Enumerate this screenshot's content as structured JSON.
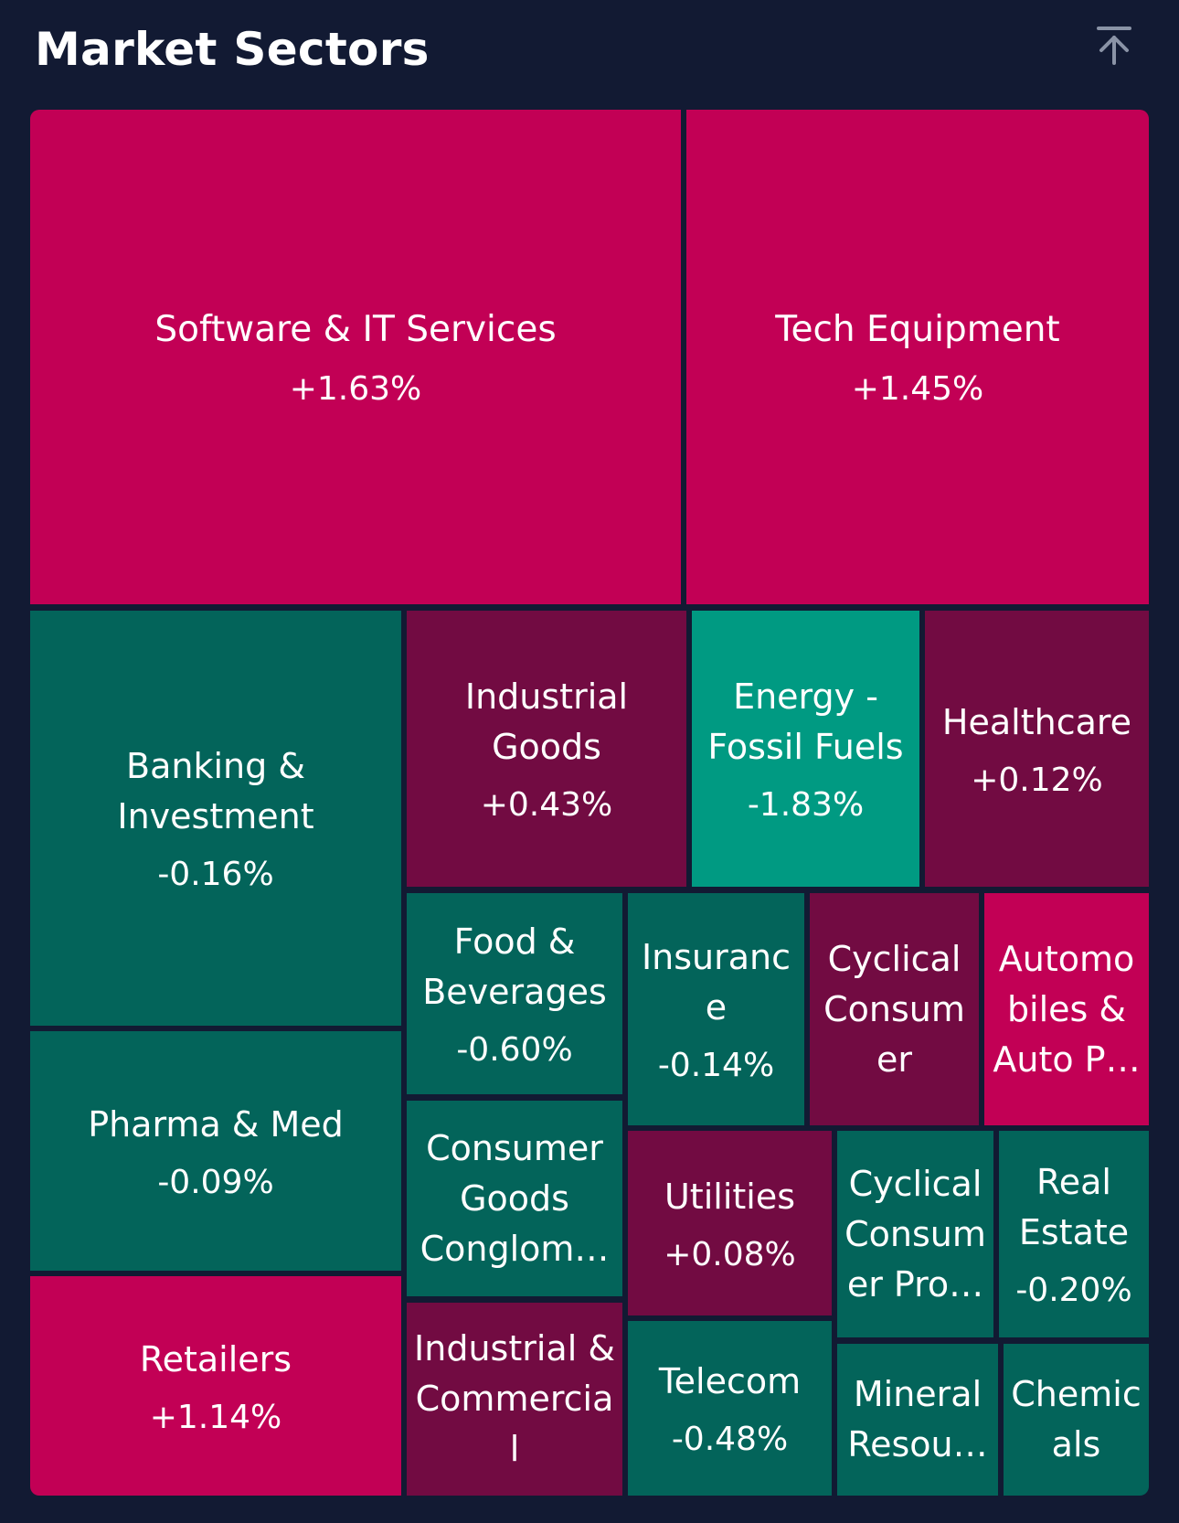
{
  "header": {
    "title": "Market Sectors",
    "collapse_icon": "arrow-up-to-bar-icon"
  },
  "colors": {
    "background": "#121a33",
    "strong_up": "#c20055",
    "mild_up": "#720b42",
    "mild_down": "#03645a",
    "strong_down": "#009a82"
  },
  "sectors": [
    {
      "id": "software-it-services",
      "name": "Software & IT Services",
      "change": "+1.63%",
      "color": "#c20055"
    },
    {
      "id": "tech-equipment",
      "name": "Tech Equipment",
      "change": "+1.45%",
      "color": "#c20055"
    },
    {
      "id": "banking-investment",
      "name": "Banking & Investment",
      "change": "-0.16%",
      "color": "#03645a"
    },
    {
      "id": "industrial-goods",
      "name": "Industrial Goods",
      "change": "+0.43%",
      "color": "#720b42"
    },
    {
      "id": "energy-fossil-fuels",
      "name": "Energy - Fossil Fuels",
      "change": "-1.83%",
      "color": "#009a82"
    },
    {
      "id": "healthcare",
      "name": "Healthcare",
      "change": "+0.12%",
      "color": "#720b42"
    },
    {
      "id": "food-beverages",
      "name": "Food & Beverages",
      "change": "-0.60%",
      "color": "#03645a"
    },
    {
      "id": "insurance",
      "name": "Insurance",
      "change": "-0.14%",
      "color": "#03645a"
    },
    {
      "id": "cyclical-consumer",
      "name": "Cyclical Consumer",
      "change": "",
      "color": "#720b42"
    },
    {
      "id": "automobiles-auto-parts",
      "name": "Automobiles & Auto P…",
      "change": "",
      "color": "#c20055"
    },
    {
      "id": "pharma-med",
      "name": "Pharma & Med",
      "change": "-0.09%",
      "color": "#03645a"
    },
    {
      "id": "consumer-goods-conglomerates",
      "name": "Consumer Goods Conglom…",
      "change": "",
      "color": "#03645a"
    },
    {
      "id": "utilities",
      "name": "Utilities",
      "change": "+0.08%",
      "color": "#720b42"
    },
    {
      "id": "cyclical-consumer-products",
      "name": "Cyclical Consumer Pro…",
      "change": "",
      "color": "#03645a"
    },
    {
      "id": "real-estate",
      "name": "Real Estate",
      "change": "-0.20%",
      "color": "#03645a"
    },
    {
      "id": "retailers",
      "name": "Retailers",
      "change": "+1.14%",
      "color": "#c20055"
    },
    {
      "id": "industrial-commercial",
      "name": "Industrial & Commercial",
      "change": "",
      "color": "#720b42"
    },
    {
      "id": "telecom",
      "name": "Telecom",
      "change": "-0.48%",
      "color": "#03645a"
    },
    {
      "id": "mineral-resources",
      "name": "Mineral Resou…",
      "change": "",
      "color": "#03645a"
    },
    {
      "id": "chemicals",
      "name": "Chemicals",
      "change": "",
      "color": "#03645a"
    }
  ]
}
